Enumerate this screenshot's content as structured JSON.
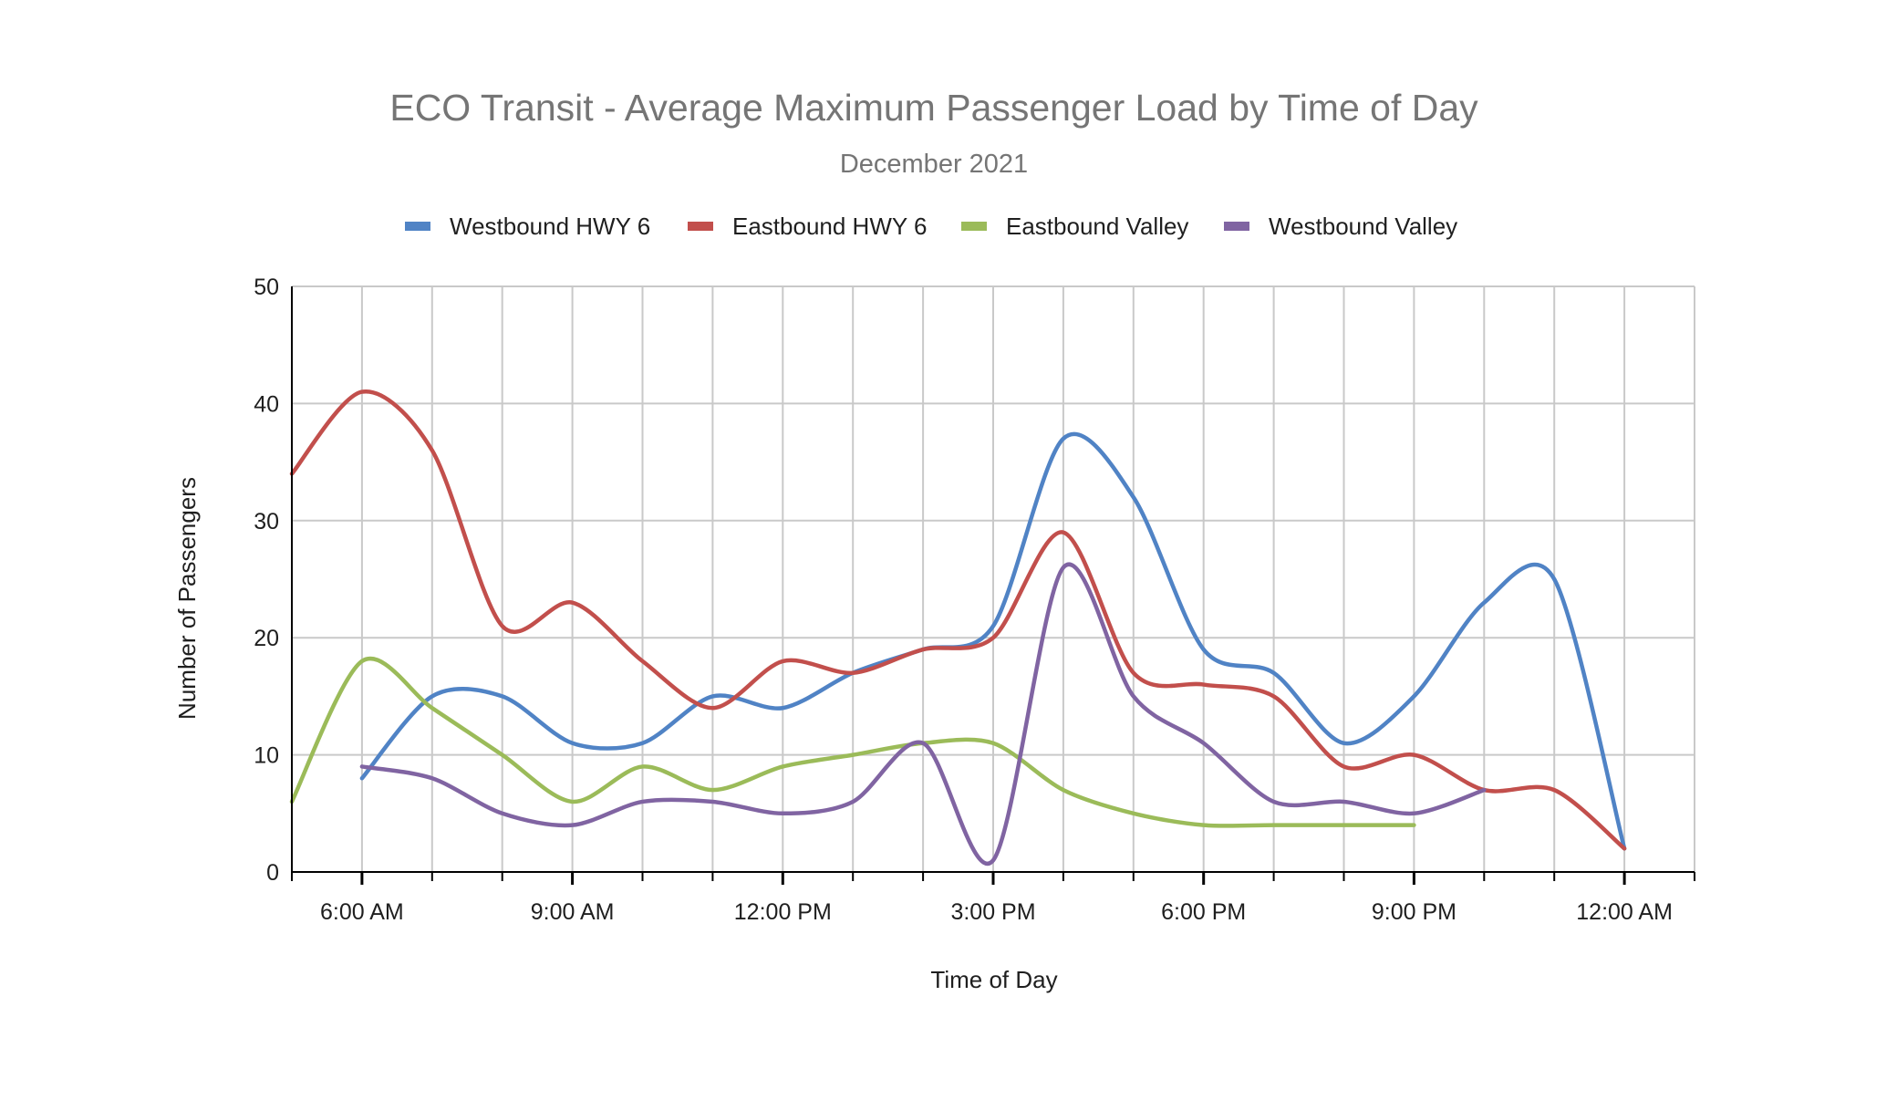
{
  "chart_data": {
    "type": "line",
    "title": "ECO Transit - Average Maximum Passenger Load by Time of Day",
    "subtitle": "December 2021",
    "xlabel": "Time of Day",
    "ylabel": "Number of Passengers",
    "ylim": [
      0,
      50
    ],
    "yticks": [
      "0",
      "10",
      "20",
      "30",
      "40",
      "50"
    ],
    "xlim": [
      "5:00 AM",
      "1:00 AM"
    ],
    "xticks": [
      "6:00 AM",
      "9:00 AM",
      "12:00 PM",
      "3:00 PM",
      "6:00 PM",
      "9:00 PM",
      "12:00 AM"
    ],
    "minor_ticks_per_hour": true,
    "grid": true,
    "legend_position": "top",
    "series": [
      {
        "name": "Westbound HWY 6",
        "color": "#5083C5",
        "points": [
          {
            "time": "6:00 AM",
            "value": 8
          },
          {
            "time": "7:00 AM",
            "value": 15
          },
          {
            "time": "8:00 AM",
            "value": 15
          },
          {
            "time": "9:00 AM",
            "value": 11
          },
          {
            "time": "10:00 AM",
            "value": 11
          },
          {
            "time": "11:00 AM",
            "value": 15
          },
          {
            "time": "12:00 PM",
            "value": 14
          },
          {
            "time": "1:00 PM",
            "value": 17
          },
          {
            "time": "2:00 PM",
            "value": 19
          },
          {
            "time": "3:00 PM",
            "value": 21
          },
          {
            "time": "4:00 PM",
            "value": 37
          },
          {
            "time": "5:00 PM",
            "value": 32
          },
          {
            "time": "6:00 PM",
            "value": 19
          },
          {
            "time": "7:00 PM",
            "value": 17
          },
          {
            "time": "8:00 PM",
            "value": 11
          },
          {
            "time": "9:00 PM",
            "value": 15
          },
          {
            "time": "10:00 PM",
            "value": 23
          },
          {
            "time": "11:00 PM",
            "value": 25
          },
          {
            "time": "12:00 AM",
            "value": 2
          }
        ]
      },
      {
        "name": "Eastbound HWY 6",
        "color": "#C24F4C",
        "points": [
          {
            "time": "5:00 AM",
            "value": 34
          },
          {
            "time": "6:00 AM",
            "value": 41
          },
          {
            "time": "7:00 AM",
            "value": 36
          },
          {
            "time": "8:00 AM",
            "value": 21
          },
          {
            "time": "9:00 AM",
            "value": 23
          },
          {
            "time": "10:00 AM",
            "value": 18
          },
          {
            "time": "11:00 AM",
            "value": 14
          },
          {
            "time": "12:00 PM",
            "value": 18
          },
          {
            "time": "1:00 PM",
            "value": 17
          },
          {
            "time": "2:00 PM",
            "value": 19
          },
          {
            "time": "3:00 PM",
            "value": 20
          },
          {
            "time": "4:00 PM",
            "value": 29
          },
          {
            "time": "5:00 PM",
            "value": 17
          },
          {
            "time": "6:00 PM",
            "value": 16
          },
          {
            "time": "7:00 PM",
            "value": 15
          },
          {
            "time": "8:00 PM",
            "value": 9
          },
          {
            "time": "9:00 PM",
            "value": 10
          },
          {
            "time": "10:00 PM",
            "value": 7
          },
          {
            "time": "11:00 PM",
            "value": 7
          },
          {
            "time": "12:00 AM",
            "value": 2
          }
        ]
      },
      {
        "name": "Eastbound Valley",
        "color": "#9BBB59",
        "points": [
          {
            "time": "5:00 AM",
            "value": 6
          },
          {
            "time": "6:00 AM",
            "value": 18
          },
          {
            "time": "7:00 AM",
            "value": 14
          },
          {
            "time": "8:00 AM",
            "value": 10
          },
          {
            "time": "9:00 AM",
            "value": 6
          },
          {
            "time": "10:00 AM",
            "value": 9
          },
          {
            "time": "11:00 AM",
            "value": 7
          },
          {
            "time": "12:00 PM",
            "value": 9
          },
          {
            "time": "1:00 PM",
            "value": 10
          },
          {
            "time": "2:00 PM",
            "value": 11
          },
          {
            "time": "3:00 PM",
            "value": 11
          },
          {
            "time": "4:00 PM",
            "value": 7
          },
          {
            "time": "5:00 PM",
            "value": 5
          },
          {
            "time": "6:00 PM",
            "value": 4
          },
          {
            "time": "7:00 PM",
            "value": 4
          },
          {
            "time": "8:00 PM",
            "value": 4
          },
          {
            "time": "9:00 PM",
            "value": 4
          }
        ]
      },
      {
        "name": "Westbound Valley",
        "color": "#8064A2",
        "points": [
          {
            "time": "6:00 AM",
            "value": 9
          },
          {
            "time": "7:00 AM",
            "value": 8
          },
          {
            "time": "8:00 AM",
            "value": 5
          },
          {
            "time": "9:00 AM",
            "value": 4
          },
          {
            "time": "10:00 AM",
            "value": 6
          },
          {
            "time": "11:00 AM",
            "value": 6
          },
          {
            "time": "12:00 PM",
            "value": 5
          },
          {
            "time": "1:00 PM",
            "value": 6
          },
          {
            "time": "2:00 PM",
            "value": 11
          },
          {
            "time": "3:00 PM",
            "value": 1
          },
          {
            "time": "4:00 PM",
            "value": 26
          },
          {
            "time": "5:00 PM",
            "value": 15
          },
          {
            "time": "6:00 PM",
            "value": 11
          },
          {
            "time": "7:00 PM",
            "value": 6
          },
          {
            "time": "8:00 PM",
            "value": 6
          },
          {
            "time": "9:00 PM",
            "value": 5
          },
          {
            "time": "10:00 PM",
            "value": 7
          }
        ]
      }
    ]
  }
}
